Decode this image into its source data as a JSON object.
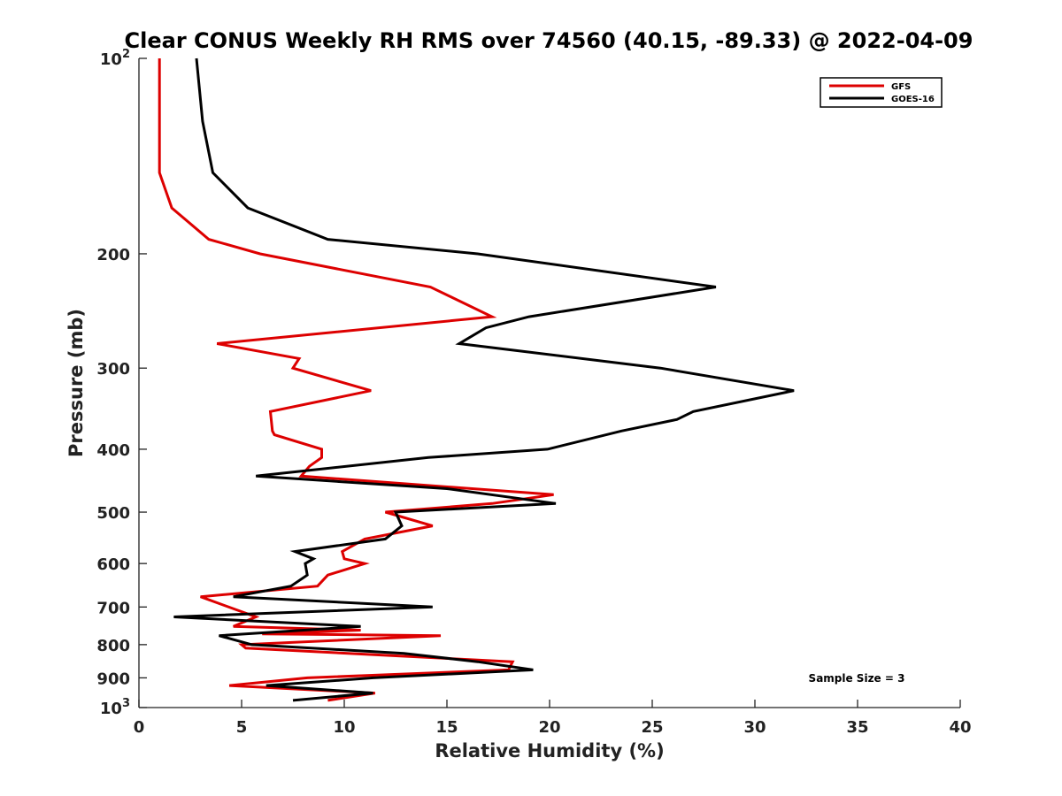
{
  "chart_data": {
    "type": "line",
    "title": "Clear CONUS Weekly RH RMS over 74560 (40.15, -89.33) @ 2022-04-09",
    "xlabel": "Relative Humidity (%)",
    "ylabel": "Pressure (mb)",
    "xlim": [
      0,
      40
    ],
    "ylim": [
      100,
      1000
    ],
    "y_scale": "log",
    "y_reversed": true,
    "x_ticks": [
      0,
      5,
      10,
      15,
      20,
      25,
      30,
      35,
      40
    ],
    "y_ticks": [
      200,
      300,
      400,
      500,
      600,
      700,
      800,
      900
    ],
    "y_tick_labels": [
      "200",
      "300",
      "400",
      "500",
      "600",
      "700",
      "800",
      "900"
    ],
    "y_end_labels": {
      "top": {
        "base": "10",
        "exp": "2"
      },
      "bottom": {
        "base": "10",
        "exp": "3"
      }
    },
    "grid": false,
    "legend_position": "top-right",
    "annotation": "Sample Size = 3",
    "series": [
      {
        "name": "GFS",
        "color": "#dd0000",
        "points": [
          [
            1.0,
            100
          ],
          [
            1.0,
            125
          ],
          [
            1.0,
            150
          ],
          [
            1.6,
            170
          ],
          [
            3.4,
            190
          ],
          [
            5.9,
            200
          ],
          [
            14.2,
            225
          ],
          [
            17.2,
            250
          ],
          [
            3.8,
            275
          ],
          [
            7.8,
            290
          ],
          [
            7.5,
            300
          ],
          [
            11.3,
            325
          ],
          [
            6.4,
            350
          ],
          [
            6.5,
            375
          ],
          [
            6.6,
            380
          ],
          [
            8.9,
            400
          ],
          [
            8.9,
            412
          ],
          [
            8.3,
            425
          ],
          [
            7.9,
            440
          ],
          [
            20.2,
            470
          ],
          [
            17.2,
            485
          ],
          [
            12.0,
            500
          ],
          [
            14.3,
            525
          ],
          [
            11.0,
            550
          ],
          [
            9.9,
            575
          ],
          [
            10.0,
            590
          ],
          [
            11.0,
            600
          ],
          [
            9.2,
            625
          ],
          [
            8.7,
            650
          ],
          [
            3.0,
            675
          ],
          [
            5.7,
            725
          ],
          [
            4.6,
            750
          ],
          [
            10.8,
            760
          ],
          [
            6.0,
            770
          ],
          [
            14.7,
            775
          ],
          [
            5.0,
            800
          ],
          [
            5.2,
            810
          ],
          [
            18.2,
            850
          ],
          [
            18.0,
            875
          ],
          [
            8.2,
            900
          ],
          [
            4.4,
            925
          ],
          [
            11.5,
            950
          ],
          [
            9.2,
            975
          ]
        ]
      },
      {
        "name": "GOES-16",
        "color": "#000000",
        "points": [
          [
            2.8,
            100
          ],
          [
            3.1,
            125
          ],
          [
            3.6,
            150
          ],
          [
            5.3,
            170
          ],
          [
            9.2,
            190
          ],
          [
            16.5,
            200
          ],
          [
            28.1,
            225
          ],
          [
            19.0,
            250
          ],
          [
            16.9,
            260
          ],
          [
            15.6,
            275
          ],
          [
            25.4,
            300
          ],
          [
            31.9,
            325
          ],
          [
            27.0,
            350
          ],
          [
            26.2,
            360
          ],
          [
            23.5,
            375
          ],
          [
            19.9,
            400
          ],
          [
            14.1,
            412
          ],
          [
            5.7,
            440
          ],
          [
            15.0,
            460
          ],
          [
            20.3,
            485
          ],
          [
            12.5,
            500
          ],
          [
            12.8,
            525
          ],
          [
            12.0,
            550
          ],
          [
            7.6,
            575
          ],
          [
            8.5,
            590
          ],
          [
            8.1,
            600
          ],
          [
            8.2,
            625
          ],
          [
            7.4,
            650
          ],
          [
            4.6,
            675
          ],
          [
            14.3,
            700
          ],
          [
            1.7,
            725
          ],
          [
            10.8,
            750
          ],
          [
            3.9,
            775
          ],
          [
            5.5,
            800
          ],
          [
            12.9,
            825
          ],
          [
            16.5,
            850
          ],
          [
            19.2,
            875
          ],
          [
            11.4,
            900
          ],
          [
            6.2,
            925
          ],
          [
            11.4,
            950
          ],
          [
            7.5,
            975
          ]
        ]
      }
    ]
  }
}
